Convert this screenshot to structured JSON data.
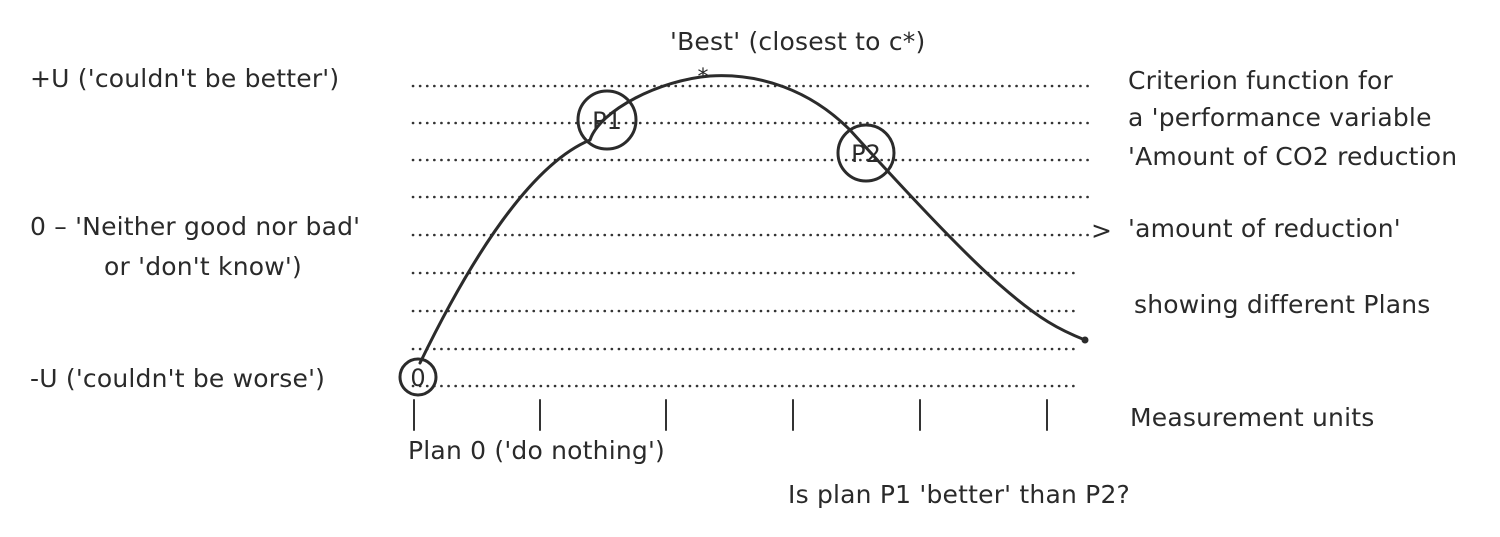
{
  "title": "'Best' (closest to c*)",
  "star": "*",
  "y_levels": {
    "top": "+U ('couldn't be better')",
    "middle_line1": "0 – 'Neither good nor bad'",
    "middle_line2": "or 'don't know')",
    "bottom": "-U ('couldn't be worse')"
  },
  "right_notes": {
    "line1": "Criterion function for",
    "line2": "a 'performance variable",
    "line3": "'Amount of  CO2 reduction",
    "arrow": ">",
    "line4": "'amount of reduction'",
    "line5": "showing different Plans",
    "measurement": "Measurement units"
  },
  "plans": {
    "origin": "0",
    "p1": "P1",
    "p2": "P2"
  },
  "x_caption": "Plan 0 ('do nothing')",
  "question": "Is plan P1 'better' than P2?"
}
